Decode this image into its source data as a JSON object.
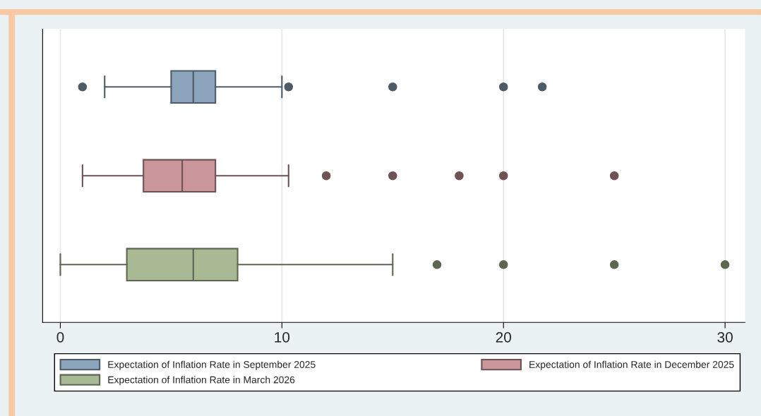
{
  "chart_data": {
    "type": "box",
    "orientation": "horizontal",
    "categories": [
      null
    ],
    "series": [
      {
        "name": "Expectation of Inflation Rate in September 2025",
        "color": "#8ca3bc",
        "boxes": [
          {
            "low": 2,
            "q1": 5,
            "median": 6,
            "q3": 7,
            "high": 10,
            "outliers": [
              1,
              10.3,
              15,
              20,
              21.75
            ]
          }
        ]
      },
      {
        "name": "Expectation of Inflation Rate in December 2025",
        "color": "#c8969b",
        "boxes": [
          {
            "low": 1,
            "q1": 3.75,
            "median": 5.5,
            "q3": 7,
            "high": 10.3,
            "outliers": [
              12,
              15,
              18,
              20,
              25
            ]
          }
        ]
      },
      {
        "name": "Expectation of Inflation Rate in March 2026",
        "color": "#a9b994",
        "boxes": [
          {
            "low": 0,
            "q1": 3,
            "median": 6,
            "q3": 8,
            "high": 15,
            "outliers": [
              17,
              20,
              25,
              30
            ]
          }
        ]
      }
    ],
    "xlim": [
      -0.8,
      30.9
    ],
    "xticks": [
      0,
      10,
      20,
      30
    ],
    "grid": "x",
    "legend": "bottom"
  }
}
